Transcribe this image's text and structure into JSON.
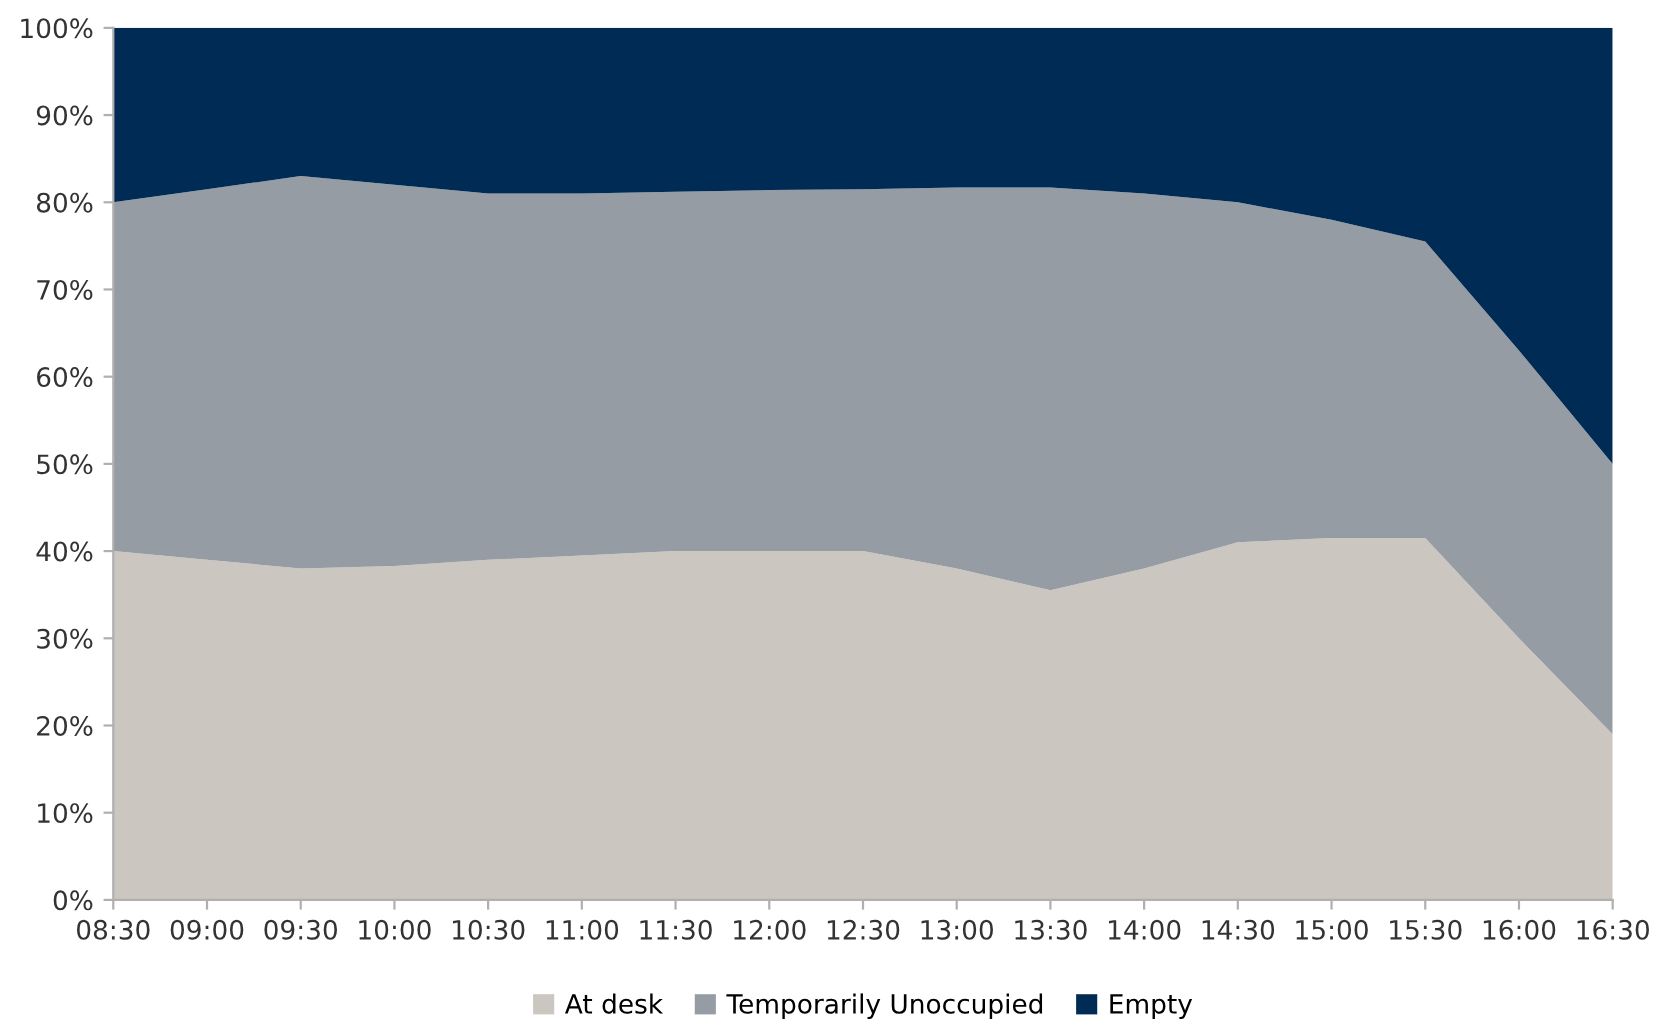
{
  "chart_data": {
    "type": "area",
    "stacked": true,
    "categories": [
      "08:30",
      "09:00",
      "09:30",
      "10:00",
      "10:30",
      "11:00",
      "11:30",
      "12:00",
      "12:30",
      "13:00",
      "13:30",
      "14:00",
      "14:30",
      "15:00",
      "15:30",
      "16:00",
      "16:30"
    ],
    "series": [
      {
        "name": "At desk",
        "color": "#cbc7c0",
        "values": [
          40,
          39,
          38,
          38.3,
          39,
          39.5,
          40,
          40,
          40,
          38,
          35.5,
          38,
          41,
          41.5,
          41.5,
          30,
          19
        ]
      },
      {
        "name": "Temporarily Unoccupied",
        "color": "#959ca3",
        "values": [
          40,
          42.5,
          45,
          43.7,
          42,
          41.5,
          41.2,
          41.4,
          41.5,
          43.7,
          46.2,
          43,
          39,
          36.5,
          34,
          33,
          31
        ]
      },
      {
        "name": "Empty",
        "color": "#002b55",
        "values": [
          20,
          18.5,
          17,
          18,
          19,
          19,
          18.8,
          18.6,
          18.5,
          18.3,
          18.3,
          19,
          20,
          22,
          24.5,
          37,
          50
        ]
      }
    ],
    "ylim": [
      0,
      100
    ],
    "yticks": [
      {
        "value": 0,
        "label": "0%"
      },
      {
        "value": 10,
        "label": "10%"
      },
      {
        "value": 20,
        "label": "20%"
      },
      {
        "value": 30,
        "label": "30%"
      },
      {
        "value": 40,
        "label": "40%"
      },
      {
        "value": 50,
        "label": "50%"
      },
      {
        "value": 60,
        "label": "60%"
      },
      {
        "value": 70,
        "label": "70%"
      },
      {
        "value": 80,
        "label": "80%"
      },
      {
        "value": 90,
        "label": "90%"
      },
      {
        "value": 100,
        "label": "100%"
      }
    ],
    "grid": false,
    "legend": "bottom"
  }
}
